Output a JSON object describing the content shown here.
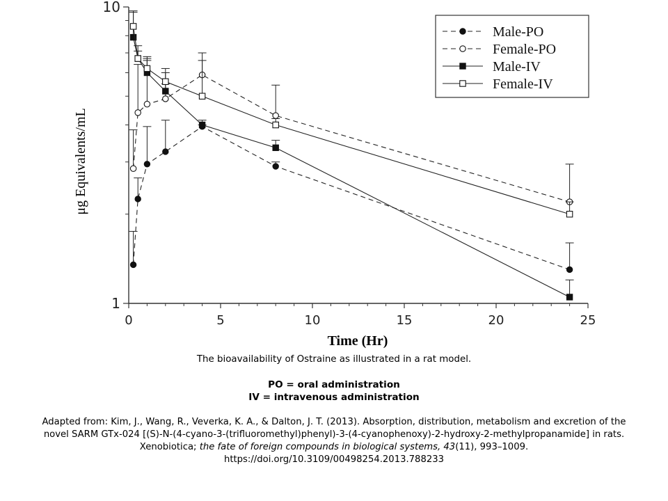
{
  "chart_data": {
    "type": "line",
    "xlabel": "Time (Hr)",
    "ylabel": "μg Equivalents/mL",
    "xlim": [
      0,
      25
    ],
    "ylim": [
      1,
      10
    ],
    "yscale": "log",
    "x_ticks": [
      "0",
      "5",
      "10",
      "15",
      "20",
      "25"
    ],
    "y_ticks": [
      "1",
      "10"
    ],
    "grid": false,
    "legend_position": "top-right",
    "series": [
      {
        "name": "Male-PO",
        "line": "dashed",
        "marker": "filled-circle",
        "points": [
          {
            "x": 0.25,
            "y": 1.35,
            "err": 0.4
          },
          {
            "x": 0.5,
            "y": 2.25,
            "err": 0.4
          },
          {
            "x": 1,
            "y": 2.95,
            "err": 1.0
          },
          {
            "x": 2,
            "y": 3.25,
            "err": 0.9
          },
          {
            "x": 4,
            "y": 3.95,
            "err": 0.05
          },
          {
            "x": 8,
            "y": 2.9,
            "err": 0.1
          },
          {
            "x": 24,
            "y": 1.3,
            "err": 0.3
          }
        ]
      },
      {
        "name": "Female-PO",
        "line": "dashed",
        "marker": "open-circle",
        "points": [
          {
            "x": 0.25,
            "y": 2.85,
            "err": 1.0
          },
          {
            "x": 0.5,
            "y": 4.4,
            "err": 2.0
          },
          {
            "x": 1,
            "y": 4.7,
            "err": 2.0
          },
          {
            "x": 2,
            "y": 4.9,
            "err": 1.1
          },
          {
            "x": 4,
            "y": 5.9,
            "err": 1.1
          },
          {
            "x": 8,
            "y": 4.3,
            "err": 1.15
          },
          {
            "x": 24,
            "y": 2.2,
            "err": 0.75
          }
        ]
      },
      {
        "name": "Male-IV",
        "line": "solid",
        "marker": "filled-square",
        "points": [
          {
            "x": 0.25,
            "y": 7.9,
            "err": 1.8
          },
          {
            "x": 0.5,
            "y": 6.7,
            "err": 0.7
          },
          {
            "x": 1,
            "y": 6.0,
            "err": 0.8
          },
          {
            "x": 2,
            "y": 5.2,
            "err": 0.3
          },
          {
            "x": 4,
            "y": 4.0,
            "err": 0.15
          },
          {
            "x": 8,
            "y": 3.35,
            "err": 0.2
          },
          {
            "x": 24,
            "y": 1.05,
            "err": 0.15
          }
        ]
      },
      {
        "name": "Female-IV",
        "line": "solid",
        "marker": "open-square",
        "points": [
          {
            "x": 0.25,
            "y": 8.6,
            "err": 1.0
          },
          {
            "x": 0.5,
            "y": 6.7,
            "err": 0.4
          },
          {
            "x": 1,
            "y": 6.2,
            "err": 0.4
          },
          {
            "x": 2,
            "y": 5.6,
            "err": 0.6
          },
          {
            "x": 4,
            "y": 5.0,
            "err": 1.6
          },
          {
            "x": 8,
            "y": 4.0,
            "err": 0.2
          },
          {
            "x": 24,
            "y": 2.0,
            "err": 0.2
          }
        ]
      }
    ]
  },
  "caption": {
    "description": "The bioavailability of Ostraine as illustrated in a rat model.",
    "abbr_po": "PO = oral administration",
    "abbr_iv": "IV = intravenous administration",
    "citation_line1": "Adapted from: Kim, J., Wang, R., Veverka, K. A., & Dalton, J. T. (2013). Absorption, distribution, metabolism and excretion of the",
    "citation_line2": "novel SARM GTx-024 [(S)-N-(4-cyano-3-(trifluoromethyl)phenyl)-3-(4-cyanophenoxy)-2-hydroxy-2-methylpropanamide] in rats.",
    "citation_line3_prefix": "Xenobiotica; ",
    "citation_line3_journal": "the fate of foreign compounds in biological systems, 43",
    "citation_line3_suffix": "(11), 993–1009.",
    "doi": "https://doi.org/10.3109/00498254.2013.788233"
  }
}
